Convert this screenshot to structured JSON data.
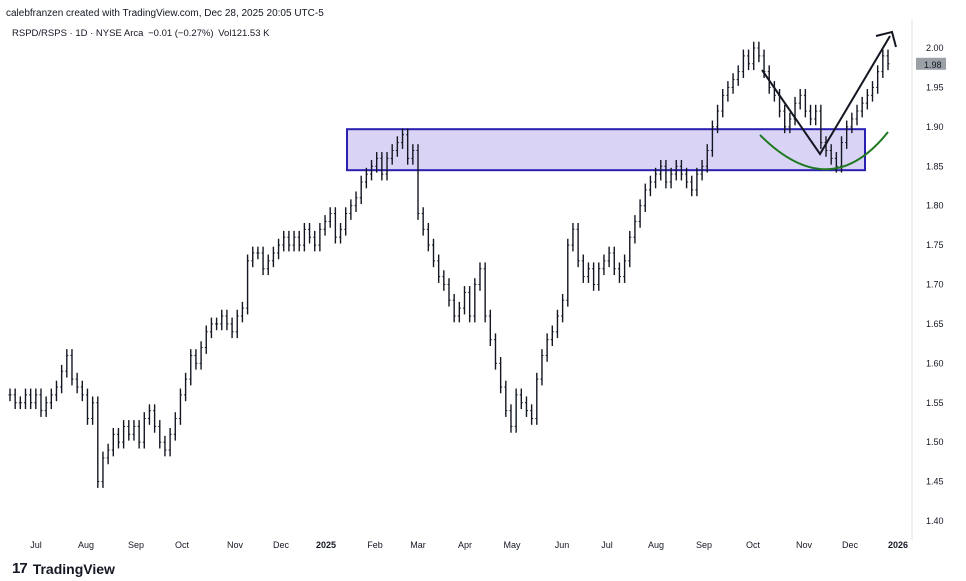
{
  "header": {
    "caption": "calebfranzen created with TradingView.com, Dec 28, 2025 20:05 UTC-5",
    "symbol": "RSPD/RSPS · 1D · NYSE Arca",
    "change": "−0.01 (−0.27%)",
    "volume": "Vol121.53 K"
  },
  "footer": {
    "brand": "TradingView",
    "mark": "17"
  },
  "colors": {
    "box_fill": "#d9d4f5",
    "box_stroke": "#2b1fb0",
    "curve": "#1f7a1f",
    "arrow": "#131722",
    "last_price_bg": "#9aa0a6"
  },
  "chart_data": {
    "type": "line",
    "y_ticks": [
      "2.00",
      "1.95",
      "1.90",
      "1.85",
      "1.80",
      "1.75",
      "1.70",
      "1.65",
      "1.60",
      "1.55",
      "1.50",
      "1.45",
      "1.40"
    ],
    "ylim": [
      1.38,
      2.03
    ],
    "x_ticks": [
      "Jul",
      "Aug",
      "Sep",
      "Oct",
      "Nov",
      "Dec",
      "2025",
      "Feb",
      "Mar",
      "Apr",
      "May",
      "Jun",
      "Jul",
      "Aug",
      "Sep",
      "Oct",
      "Nov",
      "Dec",
      "2026"
    ],
    "last_price": "1.98",
    "series": [
      {
        "values": [
          1.56,
          1.55,
          1.55,
          1.56,
          1.55,
          1.56,
          1.54,
          1.55,
          1.56,
          1.57,
          1.59,
          1.61,
          1.58,
          1.57,
          1.56,
          1.53,
          1.55,
          1.45,
          1.48,
          1.49,
          1.51,
          1.5,
          1.52,
          1.51,
          1.52,
          1.5,
          1.53,
          1.54,
          1.52,
          1.5,
          1.49,
          1.51,
          1.53,
          1.56,
          1.58,
          1.61,
          1.6,
          1.62,
          1.64,
          1.65,
          1.65,
          1.66,
          1.65,
          1.64,
          1.66,
          1.67,
          1.73,
          1.74,
          1.74,
          1.72,
          1.73,
          1.74,
          1.75,
          1.76,
          1.75,
          1.76,
          1.75,
          1.77,
          1.76,
          1.75,
          1.77,
          1.78,
          1.79,
          1.76,
          1.77,
          1.79,
          1.8,
          1.81,
          1.83,
          1.84,
          1.85,
          1.86,
          1.84,
          1.86,
          1.87,
          1.88,
          1.89,
          1.86,
          1.87,
          1.79,
          1.77,
          1.75,
          1.73,
          1.71,
          1.7,
          1.68,
          1.66,
          1.67,
          1.69,
          1.66,
          1.7,
          1.72,
          1.66,
          1.63,
          1.6,
          1.57,
          1.54,
          1.52,
          1.56,
          1.55,
          1.54,
          1.53,
          1.58,
          1.61,
          1.63,
          1.64,
          1.66,
          1.68,
          1.75,
          1.77,
          1.73,
          1.71,
          1.72,
          1.7,
          1.72,
          1.73,
          1.74,
          1.72,
          1.71,
          1.73,
          1.76,
          1.78,
          1.8,
          1.82,
          1.83,
          1.84,
          1.85,
          1.83,
          1.84,
          1.85,
          1.84,
          1.83,
          1.82,
          1.84,
          1.85,
          1.87,
          1.9,
          1.92,
          1.94,
          1.95,
          1.96,
          1.97,
          1.99,
          1.98,
          2.0,
          1.99,
          1.97,
          1.95,
          1.94,
          1.92,
          1.9,
          1.91,
          1.93,
          1.94,
          1.92,
          1.91,
          1.92,
          1.88,
          1.87,
          1.86,
          1.85,
          1.88,
          1.9,
          1.91,
          1.92,
          1.93,
          1.94,
          1.95,
          1.97,
          1.99,
          1.98
        ]
      }
    ],
    "annotations": {
      "box": {
        "y_low": 1.845,
        "y_high": 1.897
      }
    }
  }
}
